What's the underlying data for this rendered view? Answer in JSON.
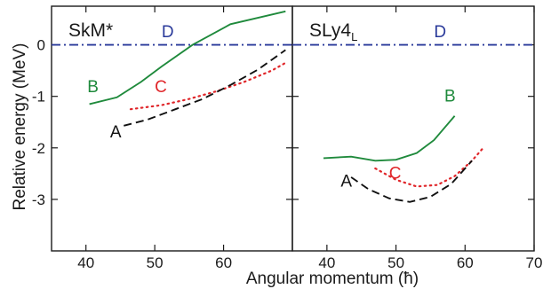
{
  "figure": {
    "ylabel": "Relative energy (MeV)",
    "xlabel": "Angular momentum (ħ)"
  },
  "chart_data": [
    {
      "type": "line",
      "title": "SkM*",
      "xlim": [
        35,
        70
      ],
      "ylim": [
        -4,
        0.75
      ],
      "x_ticks": [
        40,
        50,
        60
      ],
      "y_ticks": [
        0,
        -1,
        -2,
        -3
      ],
      "y_tick_labels": [
        "0",
        "-1",
        "-2",
        "-3"
      ],
      "grid": false,
      "series": [
        {
          "name": "D",
          "color": "#2a3a9a",
          "dash": "dashdot",
          "x": [
            35,
            70
          ],
          "y": [
            0,
            0
          ]
        },
        {
          "name": "B",
          "color": "#1f8a3c",
          "dash": "solid",
          "x": [
            40.5,
            44.5,
            48,
            51,
            55.5,
            61,
            69
          ],
          "y": [
            -1.15,
            -1.02,
            -0.72,
            -0.42,
            0,
            0.4,
            0.65
          ]
        },
        {
          "name": "C",
          "color": "#e0262a",
          "dash": "dotted",
          "x": [
            46.5,
            51,
            55,
            59,
            63,
            67,
            69
          ],
          "y": [
            -1.25,
            -1.17,
            -1.05,
            -0.9,
            -0.72,
            -0.5,
            -0.35
          ]
        },
        {
          "name": "A",
          "color": "#111111",
          "dash": "dashed",
          "x": [
            45.5,
            49,
            53,
            57,
            61,
            65,
            69
          ],
          "y": [
            -1.57,
            -1.45,
            -1.25,
            -1.05,
            -0.78,
            -0.48,
            -0.1
          ]
        }
      ],
      "labels": [
        {
          "text": "D",
          "x": 51,
          "y": 0.15
        },
        {
          "text": "B",
          "x": 40.2,
          "y": -0.92
        },
        {
          "text": "C",
          "x": 50,
          "y": -0.92
        },
        {
          "text": "A",
          "x": 43.5,
          "y": -1.8
        }
      ]
    },
    {
      "type": "line",
      "title": "SLy4",
      "title_subscript": "L",
      "xlim": [
        35,
        70
      ],
      "ylim": [
        -4,
        0.75
      ],
      "x_ticks": [
        40,
        50,
        60,
        70
      ],
      "y_ticks": [
        0,
        -1,
        -2,
        -3
      ],
      "grid": false,
      "series": [
        {
          "name": "D",
          "color": "#2a3a9a",
          "dash": "dashdot",
          "x": [
            35,
            70
          ],
          "y": [
            0,
            0
          ]
        },
        {
          "name": "B",
          "color": "#1f8a3c",
          "dash": "solid",
          "x": [
            39.5,
            43.5,
            47,
            50,
            53,
            55.5,
            58.5
          ],
          "y": [
            -2.2,
            -2.17,
            -2.25,
            -2.23,
            -2.1,
            -1.85,
            -1.38
          ]
        },
        {
          "name": "C",
          "color": "#e0262a",
          "dash": "dotted",
          "x": [
            47,
            50,
            53,
            56,
            58.5,
            61,
            62.5
          ],
          "y": [
            -2.4,
            -2.62,
            -2.75,
            -2.72,
            -2.55,
            -2.25,
            -2.02
          ]
        },
        {
          "name": "A",
          "color": "#111111",
          "dash": "dashed",
          "x": [
            43.5,
            46,
            49,
            52,
            55,
            58,
            61
          ],
          "y": [
            -2.57,
            -2.8,
            -2.98,
            -3.05,
            -2.95,
            -2.7,
            -2.25
          ]
        }
      ],
      "labels": [
        {
          "text": "D",
          "x": 55.5,
          "y": 0.15
        },
        {
          "text": "B",
          "x": 57,
          "y": -1.1
        },
        {
          "text": "C",
          "x": 49,
          "y": -2.6
        },
        {
          "text": "A",
          "x": 42,
          "y": -2.75
        }
      ]
    }
  ]
}
